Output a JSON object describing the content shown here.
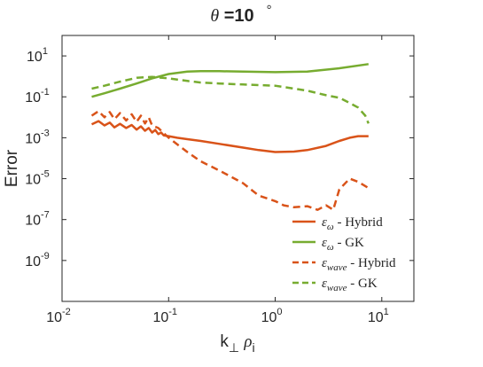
{
  "chart_data": {
    "type": "line",
    "title": {
      "symbol": "θ",
      "text": " =10",
      "degree": "°"
    },
    "xlabel": {
      "main": "k",
      "sub1": "⊥",
      "space": " ",
      "rho": "ρ",
      "sub2": "i"
    },
    "ylabel": "Error",
    "xscale": "log",
    "yscale": "log",
    "xlim": [
      0.01,
      20
    ],
    "ylim": [
      1e-11,
      100
    ],
    "grid": false,
    "legend_position": "lower-right",
    "xticks": [
      {
        "value": 0.01,
        "base": "10",
        "exp": "-2"
      },
      {
        "value": 0.1,
        "base": "10",
        "exp": "-1"
      },
      {
        "value": 1,
        "base": "10",
        "exp": "0"
      },
      {
        "value": 10,
        "base": "10",
        "exp": "1"
      }
    ],
    "yticks": [
      {
        "value": 10,
        "base": "10",
        "exp": "1"
      },
      {
        "value": 0.1,
        "base": "10",
        "exp": "-1"
      },
      {
        "value": 0.001,
        "base": "10",
        "exp": "-3"
      },
      {
        "value": 1e-05,
        "base": "10",
        "exp": "-5"
      },
      {
        "value": 1e-07,
        "base": "10",
        "exp": "-7"
      },
      {
        "value": 1e-09,
        "base": "10",
        "exp": "-9"
      }
    ],
    "series": [
      {
        "name": "ε_ω - Hybrid",
        "legend": {
          "sym": "ε",
          "sub": "ω",
          "text": " - Hybrid"
        },
        "color": "#D95319",
        "dash": "solid",
        "x": [
          0.019,
          0.022,
          0.025,
          0.028,
          0.031,
          0.035,
          0.04,
          0.045,
          0.05,
          0.055,
          0.06,
          0.065,
          0.07,
          0.075,
          0.08,
          0.085,
          0.09,
          0.1,
          0.12,
          0.15,
          0.2,
          0.3,
          0.5,
          0.7,
          1.0,
          1.5,
          2.0,
          3.0,
          4.0,
          5.0,
          6.0,
          7.5
        ],
        "y": [
          0.0045,
          0.0065,
          0.004,
          0.0055,
          0.0032,
          0.0048,
          0.003,
          0.0042,
          0.0025,
          0.0036,
          0.0022,
          0.003,
          0.0018,
          0.0024,
          0.0015,
          0.0018,
          0.0013,
          0.0012,
          0.001,
          0.00085,
          0.0007,
          0.0005,
          0.00033,
          0.00025,
          0.0002,
          0.00021,
          0.00025,
          0.0004,
          0.0007,
          0.001,
          0.0012,
          0.0012
        ]
      },
      {
        "name": "ε_ω - GK",
        "legend": {
          "sym": "ε",
          "sub": "ω",
          "text": " - GK"
        },
        "color": "#77AC30",
        "dash": "solid",
        "x": [
          0.019,
          0.025,
          0.035,
          0.05,
          0.07,
          0.1,
          0.15,
          0.2,
          0.3,
          0.5,
          1.0,
          2.0,
          4.0,
          7.5
        ],
        "y": [
          0.1,
          0.15,
          0.25,
          0.45,
          0.8,
          1.3,
          1.7,
          1.8,
          1.8,
          1.7,
          1.6,
          1.7,
          2.5,
          4.0
        ]
      },
      {
        "name": "ε_wave - Hybrid",
        "legend": {
          "sym": "ε",
          "sub": "wave",
          "text": " - Hybrid"
        },
        "color": "#D95319",
        "dash": "dashed",
        "x": [
          0.019,
          0.022,
          0.025,
          0.028,
          0.031,
          0.035,
          0.04,
          0.045,
          0.05,
          0.055,
          0.06,
          0.065,
          0.07,
          0.08,
          0.1,
          0.15,
          0.2,
          0.3,
          0.5,
          0.7,
          1.0,
          1.2,
          1.5,
          2.0,
          2.5,
          3.0,
          3.5,
          4.0,
          5.0,
          6.0,
          7.5
        ],
        "y": [
          0.012,
          0.02,
          0.01,
          0.018,
          0.008,
          0.016,
          0.007,
          0.014,
          0.006,
          0.012,
          0.005,
          0.01,
          0.004,
          0.003,
          0.001,
          0.0002,
          7e-05,
          2.5e-05,
          6e-06,
          1.5e-06,
          8e-07,
          5e-07,
          4e-07,
          4.5e-07,
          3e-07,
          5e-07,
          3e-07,
          3e-06,
          1e-05,
          7e-06,
          3.5e-06
        ]
      },
      {
        "name": "ε_wave - GK",
        "legend": {
          "sym": "ε",
          "sub": "wave",
          "text": " - GK"
        },
        "color": "#77AC30",
        "dash": "dashed",
        "x": [
          0.019,
          0.025,
          0.035,
          0.05,
          0.07,
          0.1,
          0.15,
          0.2,
          0.3,
          0.5,
          1.0,
          2.0,
          3.0,
          4.0,
          5.0,
          6.0,
          7.0,
          7.5
        ],
        "y": [
          0.25,
          0.35,
          0.55,
          0.85,
          0.95,
          0.8,
          0.6,
          0.5,
          0.45,
          0.4,
          0.35,
          0.2,
          0.12,
          0.09,
          0.05,
          0.03,
          0.012,
          0.005
        ]
      }
    ]
  }
}
